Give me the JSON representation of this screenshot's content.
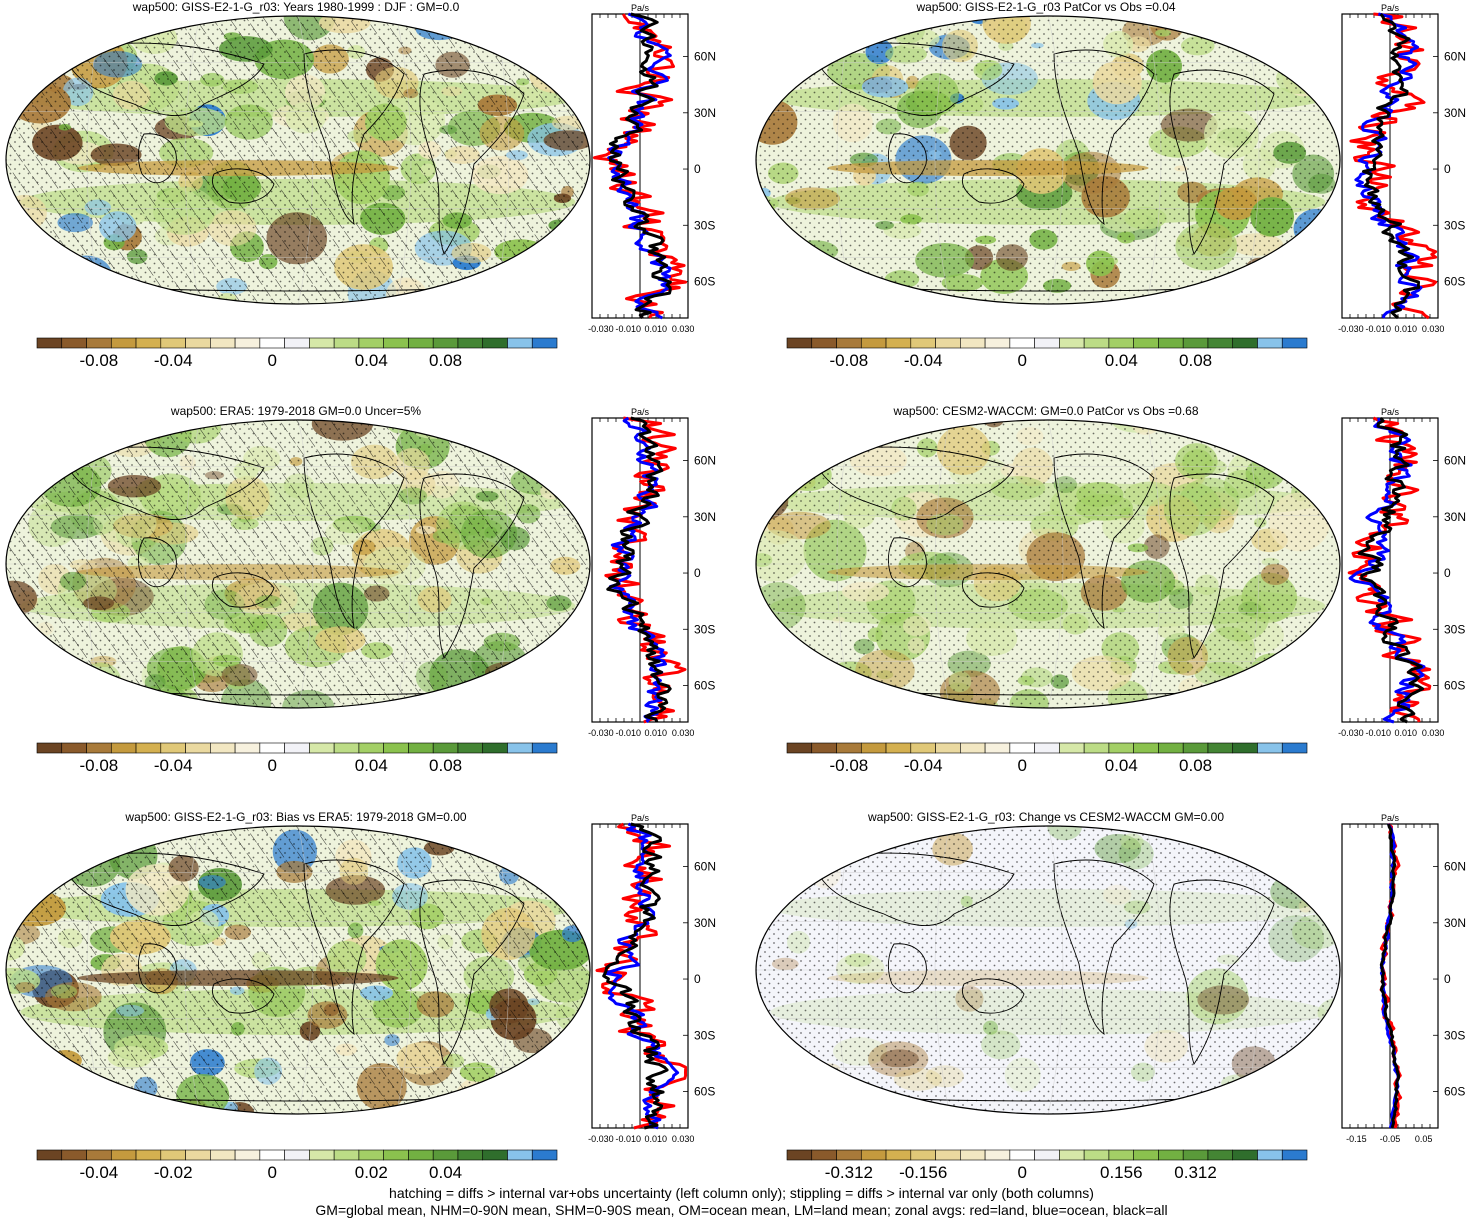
{
  "panels": [
    {
      "id": "p1",
      "title": "wap500: GISS-E2-1-G_r03: Years 1980-1999 : DJF : GM=0.0",
      "overlay": "hatch+stipple",
      "colorbar_labels": [
        "-0.08",
        "-0.04",
        "0",
        "0.04",
        "0.08"
      ],
      "zonal_unit": "Pa/s",
      "zonal_x_labels": [
        "-0.030",
        "-0.010",
        "0.010",
        "0.030"
      ],
      "zonal_y_labels": [
        "60N",
        "30N",
        "0",
        "30S",
        "60S"
      ]
    },
    {
      "id": "p2",
      "title": "wap500: GISS-E2-1-G_r03 PatCor vs Obs =0.04",
      "overlay": "stipple",
      "colorbar_labels": [
        "-0.08",
        "-0.04",
        "0",
        "0.04",
        "0.08"
      ],
      "zonal_unit": "Pa/s",
      "zonal_x_labels": [
        "-0.030",
        "-0.010",
        "0.010",
        "0.030"
      ],
      "zonal_y_labels": [
        "60N",
        "30N",
        "0",
        "30S",
        "60S"
      ]
    },
    {
      "id": "p3",
      "title": "wap500: ERA5: 1979-2018 GM=0.0 Uncer=5%",
      "overlay": "hatch+stipple",
      "colorbar_labels": [
        "-0.08",
        "-0.04",
        "0",
        "0.04",
        "0.08"
      ],
      "zonal_unit": "Pa/s",
      "zonal_x_labels": [
        "-0.030",
        "-0.010",
        "0.010",
        "0.030"
      ],
      "zonal_y_labels": [
        "60N",
        "30N",
        "0",
        "30S",
        "60S"
      ]
    },
    {
      "id": "p4",
      "title": "wap500: CESM2-WACCM: GM=0.0 PatCor vs Obs =0.68",
      "overlay": "stipple",
      "colorbar_labels": [
        "-0.08",
        "-0.04",
        "0",
        "0.04",
        "0.08"
      ],
      "zonal_unit": "Pa/s",
      "zonal_x_labels": [
        "-0.030",
        "-0.010",
        "0.010",
        "0.030"
      ],
      "zonal_y_labels": [
        "60N",
        "30N",
        "0",
        "30S",
        "60S"
      ]
    },
    {
      "id": "p5",
      "title": "wap500: GISS-E2-1-G_r03: Bias vs ERA5: 1979-2018 GM=0.00",
      "overlay": "hatch+stipple",
      "colorbar_labels": [
        "-0.04",
        "-0.02",
        "0",
        "0.02",
        "0.04"
      ],
      "zonal_unit": "Pa/s",
      "zonal_x_labels": [
        "-0.030",
        "-0.010",
        "0.010",
        "0.030"
      ],
      "zonal_y_labels": [
        "60N",
        "30N",
        "0",
        "30S",
        "60S"
      ]
    },
    {
      "id": "p6",
      "title": "wap500: GISS-E2-1-G_r03: Change vs CESM2-WACCM GM=0.00",
      "overlay": "stipple",
      "colorbar_labels": [
        "-0.312",
        "-0.156",
        "0",
        "0.156",
        "0.312"
      ],
      "zonal_unit": "Pa/s",
      "zonal_x_labels": [
        "-0.15",
        "-0.05",
        "0.05"
      ],
      "zonal_y_labels": [
        "60N",
        "30N",
        "0",
        "30S",
        "60S"
      ]
    }
  ],
  "colorbar_colors": [
    "#6b4423",
    "#8a5a2b",
    "#a87a3a",
    "#c49a3e",
    "#d4b050",
    "#e0c878",
    "#ead9a0",
    "#f2e7c2",
    "#f7f1de",
    "#ffffff",
    "#f2f2f7",
    "#d6e8a8",
    "#bcdc86",
    "#a3cf66",
    "#8bc24e",
    "#72b042",
    "#5a9a3a",
    "#448534",
    "#2f6e2c",
    "#88c3ea",
    "#2b7bcf"
  ],
  "colors": {
    "land": "#ff0000",
    "ocean": "#0000ff",
    "all": "#000000"
  },
  "footer": {
    "line1": "hatching = diffs > internal var+obs uncertainty (left column only); stippling = diffs > internal var only (both columns)",
    "line2": "GM=global mean, NHM=0-90N mean, SHM=0-90S mean, OM=ocean mean, LM=land mean; zonal avgs: red=land, blue=ocean, black=all"
  }
}
